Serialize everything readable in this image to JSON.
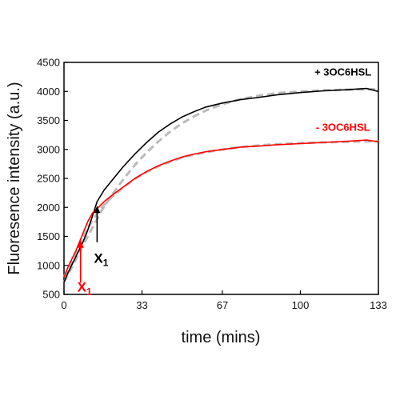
{
  "chart_data": {
    "type": "line",
    "xlabel": "time (mins)",
    "ylabel": "Fluoresence intensity (a.u.)",
    "xlim": [
      0,
      133
    ],
    "ylim": [
      500,
      4500
    ],
    "xticks": [
      "0",
      "33",
      "67",
      "100",
      "133"
    ],
    "xtick_values": [
      0,
      33,
      67,
      100,
      133
    ],
    "yticks": [
      "500",
      "1000",
      "1500",
      "2000",
      "2500",
      "3000",
      "3500",
      "4000",
      "4500"
    ],
    "ytick_values": [
      500,
      1000,
      1500,
      2000,
      2500,
      3000,
      3500,
      4000,
      4500
    ],
    "grid": false,
    "series": [
      {
        "name": "+ 3OC6HSL",
        "color": "#000000",
        "x": [
          0,
          2,
          5,
          8,
          10,
          12,
          14,
          17,
          20,
          25,
          30,
          35,
          40,
          45,
          50,
          55,
          60,
          67,
          75,
          83,
          90,
          100,
          110,
          120,
          128,
          133
        ],
        "y": [
          710,
          900,
          1150,
          1400,
          1600,
          1850,
          2100,
          2300,
          2450,
          2700,
          2920,
          3120,
          3300,
          3440,
          3560,
          3650,
          3730,
          3800,
          3860,
          3900,
          3940,
          3980,
          4010,
          4030,
          4050,
          4000
        ]
      },
      {
        "name": "- 3OC6HSL",
        "color": "#ff0000",
        "x": [
          0,
          2,
          5,
          8,
          10,
          12,
          14,
          17,
          20,
          25,
          30,
          35,
          40,
          45,
          50,
          55,
          60,
          67,
          75,
          83,
          90,
          95,
          100,
          110,
          120,
          128,
          133
        ],
        "y": [
          800,
          1000,
          1250,
          1550,
          1750,
          1900,
          1980,
          2100,
          2200,
          2350,
          2500,
          2620,
          2720,
          2800,
          2870,
          2920,
          2960,
          3000,
          3040,
          3060,
          3080,
          3090,
          3100,
          3120,
          3140,
          3160,
          3130
        ]
      }
    ],
    "fits": [
      {
        "color": "#bbbbbb",
        "x": [
          0,
          4,
          8,
          12,
          16,
          20,
          25,
          30,
          35,
          40,
          45,
          50,
          55,
          60,
          67,
          75,
          83,
          90,
          100,
          110,
          120,
          133
        ],
        "y": [
          710,
          1020,
          1340,
          1650,
          1950,
          2200,
          2480,
          2730,
          2950,
          3140,
          3310,
          3450,
          3570,
          3670,
          3780,
          3870,
          3930,
          3970,
          4000,
          4020,
          4030,
          4040
        ]
      },
      {
        "color": "#bbbbbb",
        "x": [
          0,
          4,
          8,
          12,
          16,
          20,
          25,
          30,
          35,
          40,
          45,
          50,
          55,
          60,
          67,
          75,
          83,
          90,
          100,
          110,
          120,
          133
        ],
        "y": [
          800,
          1130,
          1480,
          1780,
          2000,
          2170,
          2340,
          2490,
          2610,
          2710,
          2790,
          2860,
          2910,
          2950,
          3000,
          3040,
          3070,
          3090,
          3110,
          3120,
          3130,
          3140
        ]
      }
    ],
    "annotations": [
      {
        "text": "+ 3OC6HSL",
        "color": "#000000",
        "x": 118,
        "y": 4270
      },
      {
        "text": "- 3OC6HSL",
        "color": "#ff0000",
        "x": 118,
        "y": 3320
      },
      {
        "text": "X",
        "sub": "1",
        "color": "#000000",
        "x": 14,
        "y": 1130,
        "arrow_from": 1400,
        "arrow_to": 2000
      },
      {
        "text": "X",
        "sub": "1",
        "color": "#ff0000",
        "x": 7,
        "y": 630,
        "arrow_from": 700,
        "arrow_to": 1400
      }
    ]
  }
}
